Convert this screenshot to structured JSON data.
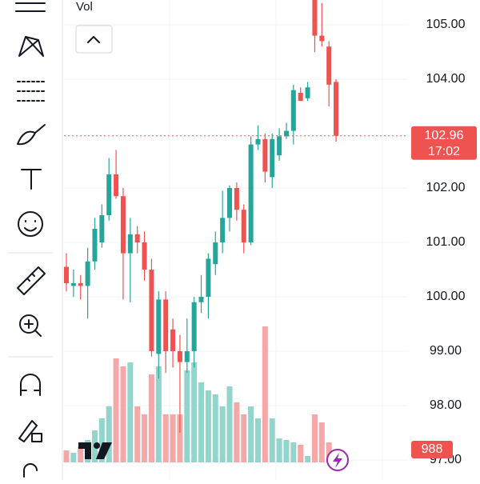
{
  "chart_data": {
    "type": "candlestick",
    "indicator": "Vol",
    "time_label": "17:02",
    "up_color": "#26a69a",
    "down_color": "#ef5350",
    "volume_up_color": "#92d5cc",
    "volume_down_color": "#f5a8a8",
    "ylim": [
      96.632,
      105.456
    ],
    "yticks": [
      {
        "value": 97,
        "label": "97.00"
      },
      {
        "value": 98,
        "label": "98.00"
      },
      {
        "value": 99,
        "label": "99.00"
      },
      {
        "value": 100,
        "label": "100.00"
      },
      {
        "value": 101,
        "label": "101.00"
      },
      {
        "value": 102,
        "label": "102.00"
      },
      {
        "value": 104,
        "label": "104.00"
      },
      {
        "value": 105,
        "label": "105.00"
      }
    ],
    "volume_lim": [
      0,
      95370
    ],
    "open": [
      100.55,
      100.2,
      100.25,
      100.2,
      100.65,
      101.0,
      101.5,
      102.25,
      101.85,
      100.8,
      101.15,
      101.0,
      100.5,
      98.95,
      99.95,
      99.4,
      99.0,
      98.8,
      99.0,
      99.9,
      100.0,
      100.6,
      101.0,
      101.45,
      102.0,
      101.6,
      101.0,
      102.8,
      102.9,
      102.2,
      102.6,
      102.95,
      103.05,
      103.75,
      103.65,
      105.5,
      104.8,
      104.6,
      103.95
    ],
    "high": [
      100.8,
      100.5,
      100.4,
      100.9,
      101.45,
      101.7,
      102.55,
      102.7,
      102.0,
      101.45,
      101.3,
      101.2,
      100.7,
      100.1,
      100.1,
      99.6,
      99.3,
      99.6,
      100.0,
      100.4,
      100.8,
      101.2,
      101.95,
      102.05,
      102.1,
      101.7,
      102.95,
      103.15,
      103.0,
      103.0,
      103.1,
      103.2,
      103.9,
      103.85,
      103.95,
      105.5,
      105.4,
      104.7,
      104.0
    ],
    "low": [
      100.1,
      100.0,
      99.95,
      99.6,
      100.5,
      100.9,
      101.4,
      101.8,
      99.95,
      99.9,
      100.8,
      100.3,
      98.9,
      98.5,
      98.6,
      98.7,
      97.5,
      98.6,
      98.7,
      99.7,
      99.6,
      100.4,
      100.8,
      101.2,
      101.4,
      100.8,
      100.95,
      102.7,
      102.1,
      102.0,
      102.5,
      102.9,
      102.8,
      103.6,
      103.6,
      104.5,
      104.6,
      103.5,
      102.85
    ],
    "close": [
      100.25,
      100.25,
      100.2,
      100.65,
      101.25,
      101.5,
      102.25,
      101.85,
      100.8,
      101.15,
      101.0,
      100.5,
      99.0,
      99.95,
      99.0,
      99.0,
      98.8,
      99.0,
      99.9,
      100.0,
      100.7,
      101.0,
      101.45,
      102.0,
      101.6,
      101.0,
      102.8,
      102.9,
      102.3,
      102.9,
      102.95,
      103.05,
      103.8,
      103.6,
      103.85,
      104.8,
      104.7,
      103.9,
      102.96
    ],
    "volume": [
      2475,
      1980,
      3300,
      4620,
      6600,
      9075,
      11550,
      21450,
      19800,
      20625,
      11550,
      9900,
      18150,
      19800,
      9900,
      9900,
      9900,
      18975,
      20625,
      16500,
      14850,
      14025,
      11550,
      15675,
      12375,
      9900,
      11550,
      9075,
      28050,
      9075,
      4950,
      4620,
      4125,
      3630,
      1320,
      9900,
      8250,
      4125,
      988
    ]
  }
}
